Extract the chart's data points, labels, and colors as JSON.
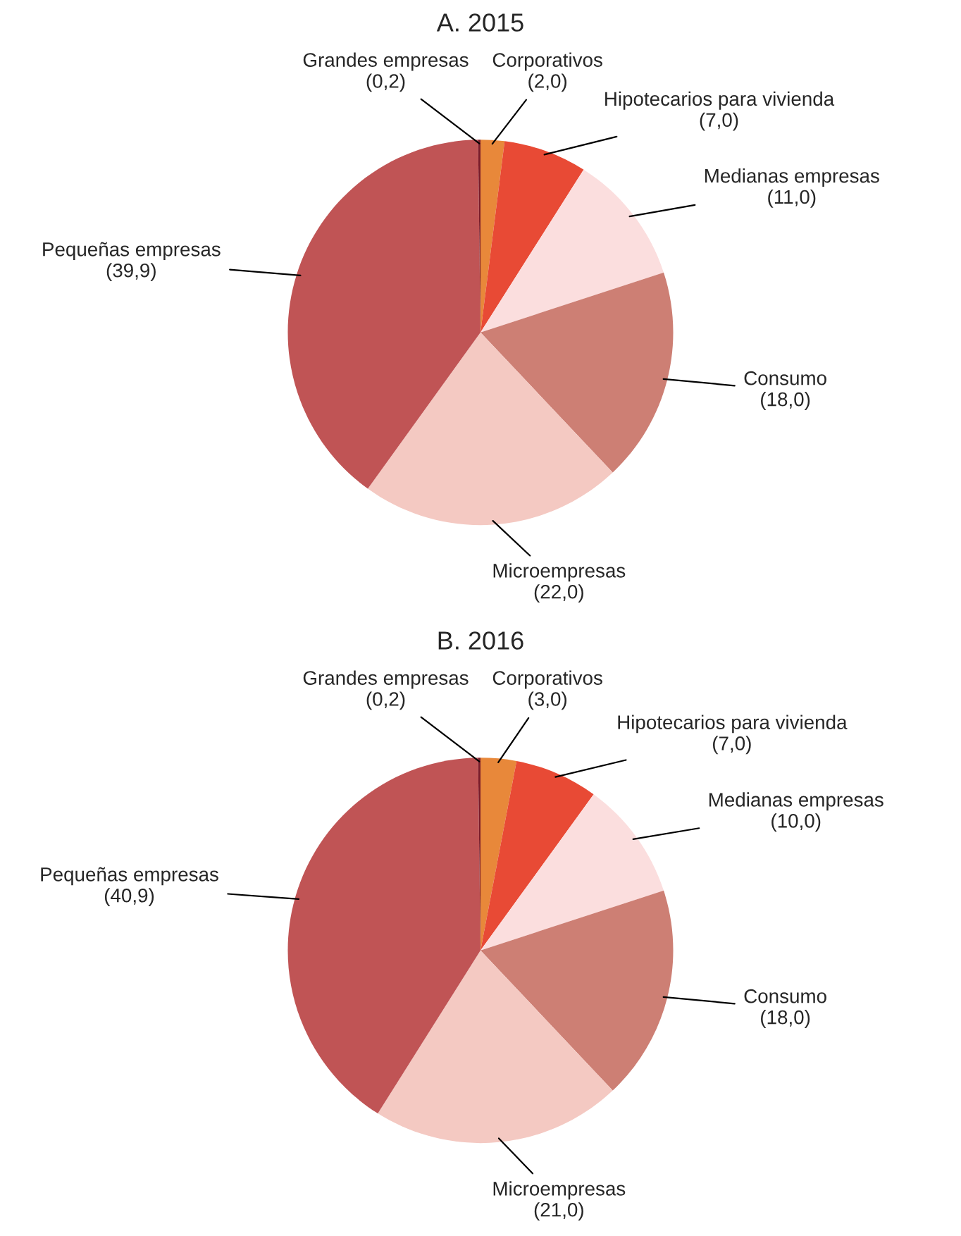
{
  "chart_data": [
    {
      "type": "pie",
      "title": "A. 2015",
      "categories": [
        "Corporativos",
        "Hipotecarios para vivienda",
        "Medianas empresas",
        "Consumo",
        "Microempresas",
        "Pequeñas empresas",
        "Grandes empresas"
      ],
      "values": [
        2.0,
        7.0,
        11.0,
        18.0,
        22.0,
        39.9,
        0.2
      ],
      "value_labels": [
        "(2,0)",
        "(7,0)",
        "(11,0)",
        "(18,0)",
        "(22,0)",
        "(39,9)",
        "(0,2)"
      ],
      "colors": [
        "#e8883a",
        "#e84a35",
        "#fbdede",
        "#cd7f74",
        "#f4c9c2",
        "#c05455",
        "#7a1c2a"
      ]
    },
    {
      "type": "pie",
      "title": "B. 2016",
      "categories": [
        "Corporativos",
        "Hipotecarios para vivienda",
        "Medianas empresas",
        "Consumo",
        "Microempresas",
        "Pequeñas empresas",
        "Grandes empresas"
      ],
      "values": [
        3.0,
        7.0,
        10.0,
        18.0,
        21.0,
        40.9,
        0.2
      ],
      "value_labels": [
        "(3,0)",
        "(7,0)",
        "(10,0)",
        "(18,0)",
        "(21,0)",
        "(40,9)",
        "(0,2)"
      ],
      "colors": [
        "#e8883a",
        "#e84a35",
        "#fbdede",
        "#cd7f74",
        "#f4c9c2",
        "#c05455",
        "#7a1c2a"
      ]
    }
  ]
}
